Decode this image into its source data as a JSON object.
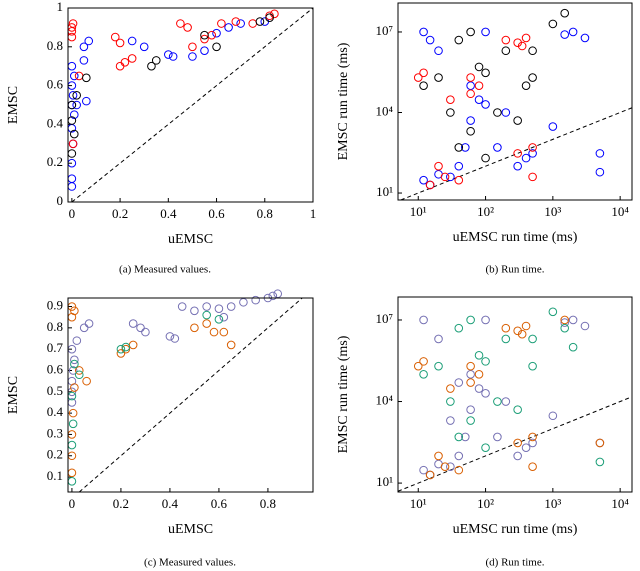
{
  "chart_data": [
    {
      "type": "scatter",
      "caption": "(a) Measured values.",
      "xlabel": "uEMSC",
      "ylabel": "EMSC",
      "xlim": [
        -0.016,
        1
      ],
      "ylim": [
        0,
        1
      ],
      "xticks": [
        0,
        0.2,
        0.4,
        0.6,
        0.8,
        1
      ],
      "yticks": [
        0,
        0.2,
        0.4,
        0.6,
        0.8,
        1
      ],
      "series": [
        {
          "color": "#0000ff",
          "x": [
            0,
            0,
            0,
            0.005,
            0,
            0.01,
            0,
            0.005,
            0,
            0.01,
            0,
            0.02,
            0.06,
            0.05,
            0.07,
            0.25,
            0.3,
            0.4,
            0.42,
            0.5,
            0.55,
            0.6,
            0.65,
            0.7,
            0.8,
            0.05
          ],
          "values": [
            0.08,
            0.12,
            0.2,
            0.3,
            0.38,
            0.45,
            0.5,
            0.55,
            0.6,
            0.65,
            0.7,
            0.5,
            0.52,
            0.8,
            0.83,
            0.83,
            0.8,
            0.76,
            0.75,
            0.75,
            0.78,
            0.87,
            0.9,
            0.92,
            0.93,
            0.73
          ]
        },
        {
          "color": "#ff0000",
          "x": [
            0,
            0,
            0,
            0.005,
            0.005,
            0.03,
            0.2,
            0.22,
            0.25,
            0.18,
            0.2,
            0.5,
            0.55,
            0.58,
            0.62,
            0.68,
            0.75,
            0.82,
            0.84,
            0.45,
            0.48
          ],
          "values": [
            0.85,
            0.88,
            0.9,
            0.92,
            0.3,
            0.65,
            0.7,
            0.72,
            0.74,
            0.85,
            0.82,
            0.8,
            0.84,
            0.86,
            0.92,
            0.93,
            0.92,
            0.96,
            0.97,
            0.92,
            0.9
          ]
        },
        {
          "color": "#000000",
          "x": [
            0,
            0,
            0.01,
            0,
            0.06,
            0.33,
            0.35,
            0.6,
            0.78,
            0.82,
            0.55,
            0.02
          ],
          "values": [
            0.25,
            0.42,
            0.35,
            0.5,
            0.64,
            0.7,
            0.73,
            0.8,
            0.93,
            0.95,
            0.86,
            0.55
          ]
        }
      ]
    },
    {
      "type": "scatter",
      "caption": "(b) Run time.",
      "xlabel": "uEMSC run time (ms)",
      "ylabel": "EMSC run time (ms)",
      "xlog": true,
      "ylog": true,
      "xlim": [
        5,
        15000
      ],
      "ylim": [
        5.5,
        120000000
      ],
      "xticks": [
        {
          "value": 10,
          "label": "10¹"
        },
        {
          "value": 100,
          "label": "10²"
        },
        {
          "value": 1000,
          "label": "10³"
        },
        {
          "value": 10000,
          "label": "10⁴"
        }
      ],
      "yticks": [
        {
          "value": 10,
          "label": "10¹"
        },
        {
          "value": 10000,
          "label": "10⁴"
        },
        {
          "value": 10000000,
          "label": "10⁷"
        }
      ],
      "series": [
        {
          "color": "#0000ff",
          "x": [
            12,
            15,
            20,
            30,
            40,
            50,
            60,
            80,
            100,
            200,
            300,
            400,
            500,
            1000,
            1500,
            2000,
            3000,
            12,
            15,
            20,
            100,
            5000,
            5000,
            60,
            150
          ],
          "values": [
            30,
            20,
            50,
            40,
            100,
            500,
            5000,
            30000,
            20000,
            10000,
            100,
            200,
            300,
            3000,
            8000000,
            10000000,
            6000000,
            10000000,
            5000000,
            2000000,
            10000000,
            300,
            60,
            100000,
            500
          ]
        },
        {
          "color": "#ff0000",
          "x": [
            10,
            12,
            15,
            20,
            25,
            40,
            60,
            80,
            200,
            300,
            350,
            400,
            500,
            30,
            60,
            300,
            500
          ],
          "values": [
            200000,
            300000,
            20,
            100,
            40,
            30,
            200000,
            100000,
            5000000,
            4000000,
            3000000,
            6000000,
            500,
            30000,
            50000,
            300,
            40
          ]
        },
        {
          "color": "#000000",
          "x": [
            12,
            20,
            40,
            60,
            80,
            100,
            150,
            300,
            500,
            1000,
            1500,
            200,
            60,
            40,
            100,
            30,
            500,
            400
          ],
          "values": [
            100000,
            200000,
            5000000,
            10000000,
            500000,
            300000,
            10000,
            5000,
            200000,
            20000000,
            50000000,
            2000000,
            2000,
            500,
            200,
            10000,
            2000000,
            100000
          ]
        }
      ]
    },
    {
      "type": "scatter",
      "caption": "(c) Measured values.",
      "xlabel": "uEMSC",
      "ylabel": "EMSC",
      "xlim": [
        -0.016,
        0.984
      ],
      "ylim": [
        0.03,
        0.94
      ],
      "xticks": [
        0,
        0.2,
        0.4,
        0.6,
        0.8
      ],
      "yticks": [
        0.1,
        0.2,
        0.3,
        0.4,
        0.5,
        0.6,
        0.7,
        0.8,
        0.9
      ],
      "series": [
        {
          "color": "#7570b3",
          "x": [
            0,
            0,
            0,
            0.005,
            0.01,
            0,
            0.02,
            0.05,
            0.07,
            0.25,
            0.28,
            0.3,
            0.4,
            0.42,
            0.5,
            0.55,
            0.6,
            0.65,
            0.7,
            0.75,
            0.8,
            0.82,
            0.84,
            0.45,
            0.62
          ],
          "values": [
            0.45,
            0.5,
            0.55,
            0.6,
            0.65,
            0.7,
            0.74,
            0.8,
            0.82,
            0.82,
            0.8,
            0.78,
            0.76,
            0.75,
            0.88,
            0.9,
            0.89,
            0.9,
            0.92,
            0.93,
            0.94,
            0.95,
            0.96,
            0.9,
            0.85
          ]
        },
        {
          "color": "#d95f02",
          "x": [
            0,
            0,
            0,
            0.005,
            0,
            0.01,
            0.03,
            0.06,
            0.2,
            0.22,
            0.25,
            0.5,
            0.55,
            0.58,
            0.62,
            0.65,
            0,
            0.01
          ],
          "values": [
            0.12,
            0.2,
            0.3,
            0.4,
            0.85,
            0.88,
            0.6,
            0.55,
            0.68,
            0.7,
            0.72,
            0.8,
            0.82,
            0.78,
            0.78,
            0.72,
            0.9,
            0.52
          ]
        },
        {
          "color": "#1b9e77",
          "x": [
            0,
            0,
            0.005,
            0,
            0.01,
            0.2,
            0.22,
            0.55,
            0.6,
            0.03
          ],
          "values": [
            0.08,
            0.25,
            0.35,
            0.48,
            0.63,
            0.7,
            0.71,
            0.86,
            0.84,
            0.58
          ]
        }
      ]
    },
    {
      "type": "scatter",
      "caption": "(d) Run time.",
      "xlabel": "uEMSC run time (ms)",
      "ylabel": "EMSC run time (ms)",
      "xlog": true,
      "ylog": true,
      "xlim": [
        5,
        15000
      ],
      "ylim": [
        4.7,
        70000000
      ],
      "xticks": [
        {
          "value": 10,
          "label": "10¹"
        },
        {
          "value": 100,
          "label": "10²"
        },
        {
          "value": 1000,
          "label": "10³"
        },
        {
          "value": 10000,
          "label": "10⁴"
        }
      ],
      "yticks": [
        {
          "value": 10,
          "label": "10¹"
        },
        {
          "value": 10000,
          "label": "10⁴"
        },
        {
          "value": 10000000,
          "label": "10⁷"
        }
      ],
      "series": [
        {
          "color": "#7570b3",
          "x": [
            12,
            15,
            20,
            30,
            40,
            50,
            60,
            80,
            100,
            200,
            300,
            400,
            500,
            1000,
            1500,
            2000,
            3000,
            12,
            20,
            100,
            5000,
            60,
            150,
            40,
            30
          ],
          "values": [
            30,
            20,
            50,
            40,
            100,
            500,
            5000,
            30000,
            20000,
            10000,
            100,
            200,
            300,
            3000,
            8000000,
            10000000,
            6000000,
            10000000,
            2000000,
            10000000,
            300,
            100000,
            500,
            50000,
            2000
          ]
        },
        {
          "color": "#d95f02",
          "x": [
            10,
            12,
            15,
            20,
            25,
            40,
            60,
            80,
            200,
            300,
            350,
            400,
            500,
            30,
            60,
            300,
            500,
            1500,
            5000
          ],
          "values": [
            200000,
            300000,
            20,
            100,
            40,
            30,
            200000,
            100000,
            5000000,
            4000000,
            3000000,
            6000000,
            500,
            30000,
            50000,
            300,
            40,
            10000000,
            300
          ]
        },
        {
          "color": "#1b9e77",
          "x": [
            12,
            20,
            40,
            60,
            80,
            100,
            150,
            300,
            500,
            1000,
            1500,
            200,
            60,
            40,
            100,
            30,
            500,
            2000,
            5000
          ],
          "values": [
            100000,
            200000,
            5000000,
            10000000,
            500000,
            300000,
            10000,
            5000,
            200000,
            20000000,
            5000000,
            2000000,
            2000,
            500,
            200,
            10000,
            2000000,
            1000000,
            60
          ]
        }
      ]
    }
  ]
}
